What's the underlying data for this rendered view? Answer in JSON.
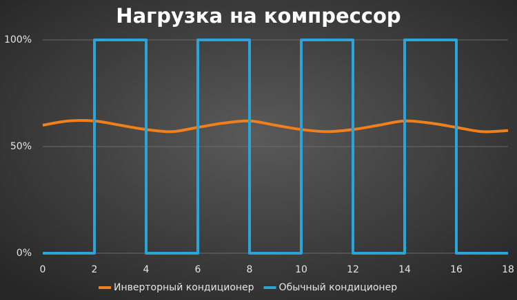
{
  "chart_data": {
    "type": "line",
    "title": "Нагрузка на компрессор",
    "xlim": [
      0,
      18
    ],
    "xticks": [
      0,
      2,
      4,
      6,
      8,
      10,
      12,
      14,
      16,
      18
    ],
    "ylim": [
      0,
      100
    ],
    "yticks": [
      {
        "value": 0,
        "label": "0%"
      },
      {
        "value": 50,
        "label": "50%"
      },
      {
        "value": 100,
        "label": "100%"
      }
    ],
    "grid": true,
    "legend": "bottom",
    "series": [
      {
        "name": "Инверторный кондиционер",
        "color": "#f07f1e",
        "smooth": true,
        "x": [
          0,
          1,
          2,
          3,
          4,
          5,
          6,
          7,
          8,
          9,
          10,
          11,
          12,
          13,
          14,
          15,
          16,
          17,
          18
        ],
        "values": [
          60,
          62,
          62,
          60,
          58,
          57,
          59,
          61,
          62,
          60,
          58,
          57,
          58,
          60,
          62,
          61,
          59,
          57,
          57.5
        ]
      },
      {
        "name": "Обычный кондиционер",
        "color": "#2ea3d8",
        "smooth": false,
        "x": [
          0,
          2,
          2,
          4,
          4,
          6,
          6,
          8,
          8,
          10,
          10,
          12,
          12,
          14,
          14,
          16,
          16,
          18
        ],
        "values": [
          0,
          0,
          100,
          100,
          0,
          0,
          100,
          100,
          0,
          0,
          100,
          100,
          0,
          0,
          100,
          100,
          0,
          0
        ]
      }
    ]
  }
}
